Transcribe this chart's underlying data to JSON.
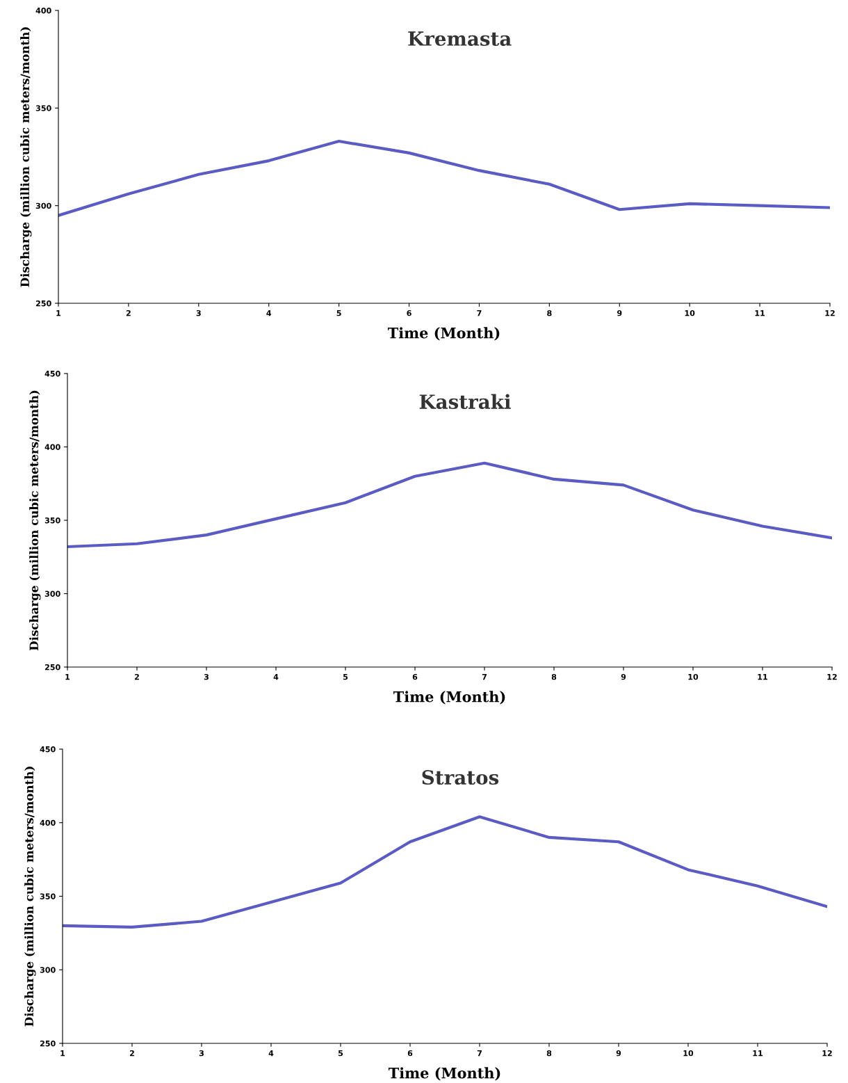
{
  "chart_data": [
    {
      "type": "line",
      "title": "Kremasta",
      "xlabel": "Time (Month)",
      "ylabel": "Discharge (million cubic meters/month)",
      "x": [
        1,
        2,
        3,
        4,
        5,
        6,
        7,
        8,
        9,
        10,
        11,
        12
      ],
      "xlim": [
        1,
        12
      ],
      "xticks": [
        1,
        2,
        3,
        4,
        5,
        6,
        7,
        8,
        9,
        10,
        11,
        12
      ],
      "ylim": [
        250,
        400
      ],
      "yticks": [
        250,
        300,
        350,
        400
      ],
      "grid": false,
      "legend": false,
      "series": [
        {
          "color": "#5b5bc4",
          "values": [
            295,
            306,
            316,
            323,
            333,
            327,
            318,
            311,
            298,
            301,
            300,
            299
          ]
        }
      ]
    },
    {
      "type": "line",
      "title": "Kastraki",
      "xlabel": "Time (Month)",
      "ylabel": "Discharge (million cubic meters/month)",
      "x": [
        1,
        2,
        3,
        4,
        5,
        6,
        7,
        8,
        9,
        10,
        11,
        12
      ],
      "xlim": [
        1,
        12
      ],
      "xticks": [
        1,
        2,
        3,
        4,
        5,
        6,
        7,
        8,
        9,
        10,
        11,
        12
      ],
      "ylim": [
        250,
        450
      ],
      "yticks": [
        250,
        300,
        350,
        400,
        450
      ],
      "grid": false,
      "legend": false,
      "series": [
        {
          "color": "#5b5bc4",
          "values": [
            332,
            334,
            340,
            351,
            362,
            380,
            389,
            378,
            374,
            357,
            346,
            338
          ]
        }
      ]
    },
    {
      "type": "line",
      "title": "Stratos",
      "xlabel": "Time (Month)",
      "ylabel": "Discharge (million cubic meters/month)",
      "x": [
        1,
        2,
        3,
        4,
        5,
        6,
        7,
        8,
        9,
        10,
        11,
        12
      ],
      "xlim": [
        1,
        12
      ],
      "xticks": [
        1,
        2,
        3,
        4,
        5,
        6,
        7,
        8,
        9,
        10,
        11,
        12
      ],
      "ylim": [
        250,
        450
      ],
      "yticks": [
        250,
        300,
        350,
        400,
        450
      ],
      "grid": false,
      "legend": false,
      "series": [
        {
          "color": "#5b5bc4",
          "values": [
            330,
            329,
            333,
            346,
            359,
            387,
            404,
            390,
            387,
            368,
            357,
            343
          ]
        }
      ]
    }
  ]
}
